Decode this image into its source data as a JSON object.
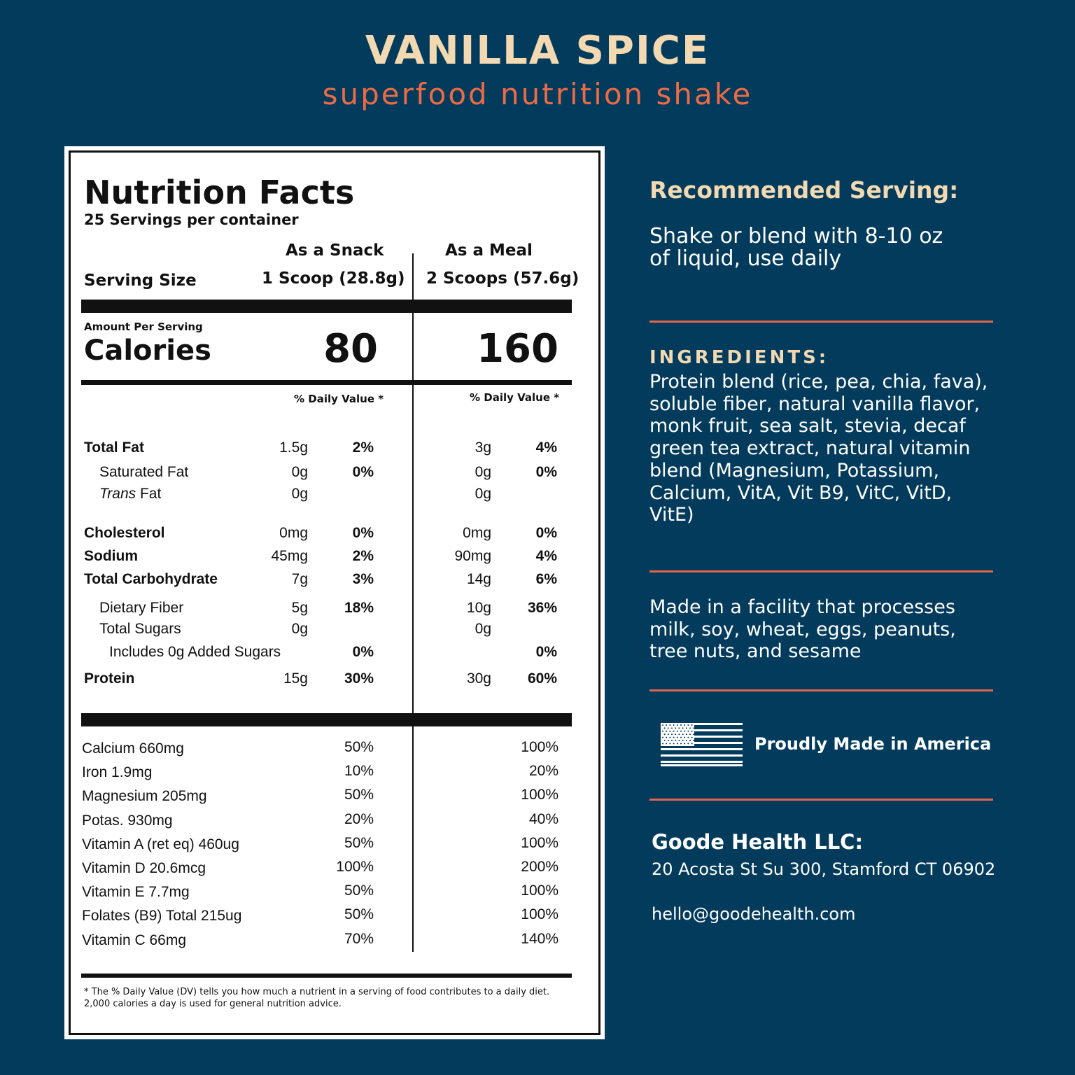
{
  "header": {
    "title": "VANILLA SPICE",
    "subtitle": "superfood nutrition shake"
  },
  "label": {
    "heading": "Nutrition Facts",
    "servings": "25 Servings per container",
    "serving_size_label": "Serving Size",
    "col1_title": "As a Snack",
    "col1_size": "1 Scoop (28.8g)",
    "col2_title": "As a Meal",
    "col2_size": "2 Scoops (57.6g)",
    "amount_per_serving": "Amount Per Serving",
    "calories_label": "Calories",
    "calories1": "80",
    "calories2": "160",
    "dv_header": "% Daily Value *",
    "nutrients": [
      {
        "name": "Total Fat",
        "a1": "1.5g",
        "d1": "2%",
        "a2": "3g",
        "d2": "4%"
      },
      {
        "name": "Saturated Fat",
        "a1": "0g",
        "d1": "0%",
        "a2": "0g",
        "d2": "0%"
      },
      {
        "name_italic": "Trans",
        "name_rest": " Fat",
        "a1": "0g",
        "a2": "0g"
      },
      {
        "name": "Cholesterol",
        "a1": "0mg",
        "d1": "0%",
        "a2": "0mg",
        "d2": "0%"
      },
      {
        "name": "Sodium",
        "a1": "45mg",
        "d1": "2%",
        "a2": "90mg",
        "d2": "4%"
      },
      {
        "name": "Total Carbohydrate",
        "a1": "7g",
        "d1": "3%",
        "a2": "14g",
        "d2": "6%"
      },
      {
        "name": "Dietary Fiber",
        "a1": "5g",
        "d1": "18%",
        "a2": "10g",
        "d2": "36%"
      },
      {
        "name": "Total Sugars",
        "a1": "0g",
        "a2": "0g"
      },
      {
        "name": "Includes 0g Added Sugars",
        "d1": "0%",
        "d2": "0%"
      },
      {
        "name": "Protein",
        "a1": "15g",
        "d1": "30%",
        "a2": "30g",
        "d2": "60%"
      }
    ],
    "vitamins": [
      {
        "name": "Calcium 660mg",
        "d1": "50%",
        "d2": "100%"
      },
      {
        "name": "Iron 1.9mg",
        "d1": "10%",
        "d2": "20%"
      },
      {
        "name": "Magnesium 205mg",
        "d1": "50%",
        "d2": "100%"
      },
      {
        "name": "Potas. 930mg",
        "d1": "20%",
        "d2": "40%"
      },
      {
        "name": "Vitamin A (ret eq) 460ug",
        "d1": "50%",
        "d2": "100%"
      },
      {
        "name": "Vitamin D 20.6mcg",
        "d1": "100%",
        "d2": "200%"
      },
      {
        "name": "Vitamin E 7.7mg",
        "d1": "50%",
        "d2": "100%"
      },
      {
        "name": "Folates (B9) Total 215ug",
        "d1": "50%",
        "d2": "100%"
      },
      {
        "name": "Vitamin C 66mg",
        "d1": "70%",
        "d2": "140%"
      }
    ],
    "footnote_line1": "* The % Daily Value (DV) tells you how much a nutrient in a serving of food contributes to a daily diet.",
    "footnote_line2": "2,000 calories a day is used for general nutrition advice."
  },
  "sidebar": {
    "serving_heading": "Recommended Serving:",
    "serving_line1": "Shake or blend with 8-10 oz",
    "serving_line2": "of liquid, use daily",
    "ingredients_heading": "INGREDIENTS:",
    "ingredients_lines": [
      "Protein blend (rice, pea, chia, fava),",
      "soluble fiber, natural vanilla flavor,",
      "monk fruit, sea salt, stevia, decaf",
      "green tea extract, natural vitamin",
      "blend (Magnesium, Potassium,",
      "Calcium, VitA, Vit B9, VitC, VitD,",
      "VitE)"
    ],
    "allergen_lines": [
      "Made in a facility that processes",
      "milk, soy, wheat, eggs, peanuts,",
      "tree nuts, and sesame"
    ],
    "made_in": "Proudly Made in America",
    "company": "Goode Health LLC:",
    "address": "20 Acosta St Su 300, Stamford CT 06902",
    "email": "hello@goodehealth.com",
    "colors": {
      "accent_orange": "#e0664a",
      "accent_cream": "#f3d9b1",
      "background": "#033b5c"
    },
    "icons": [
      "american-flag-icon"
    ]
  }
}
